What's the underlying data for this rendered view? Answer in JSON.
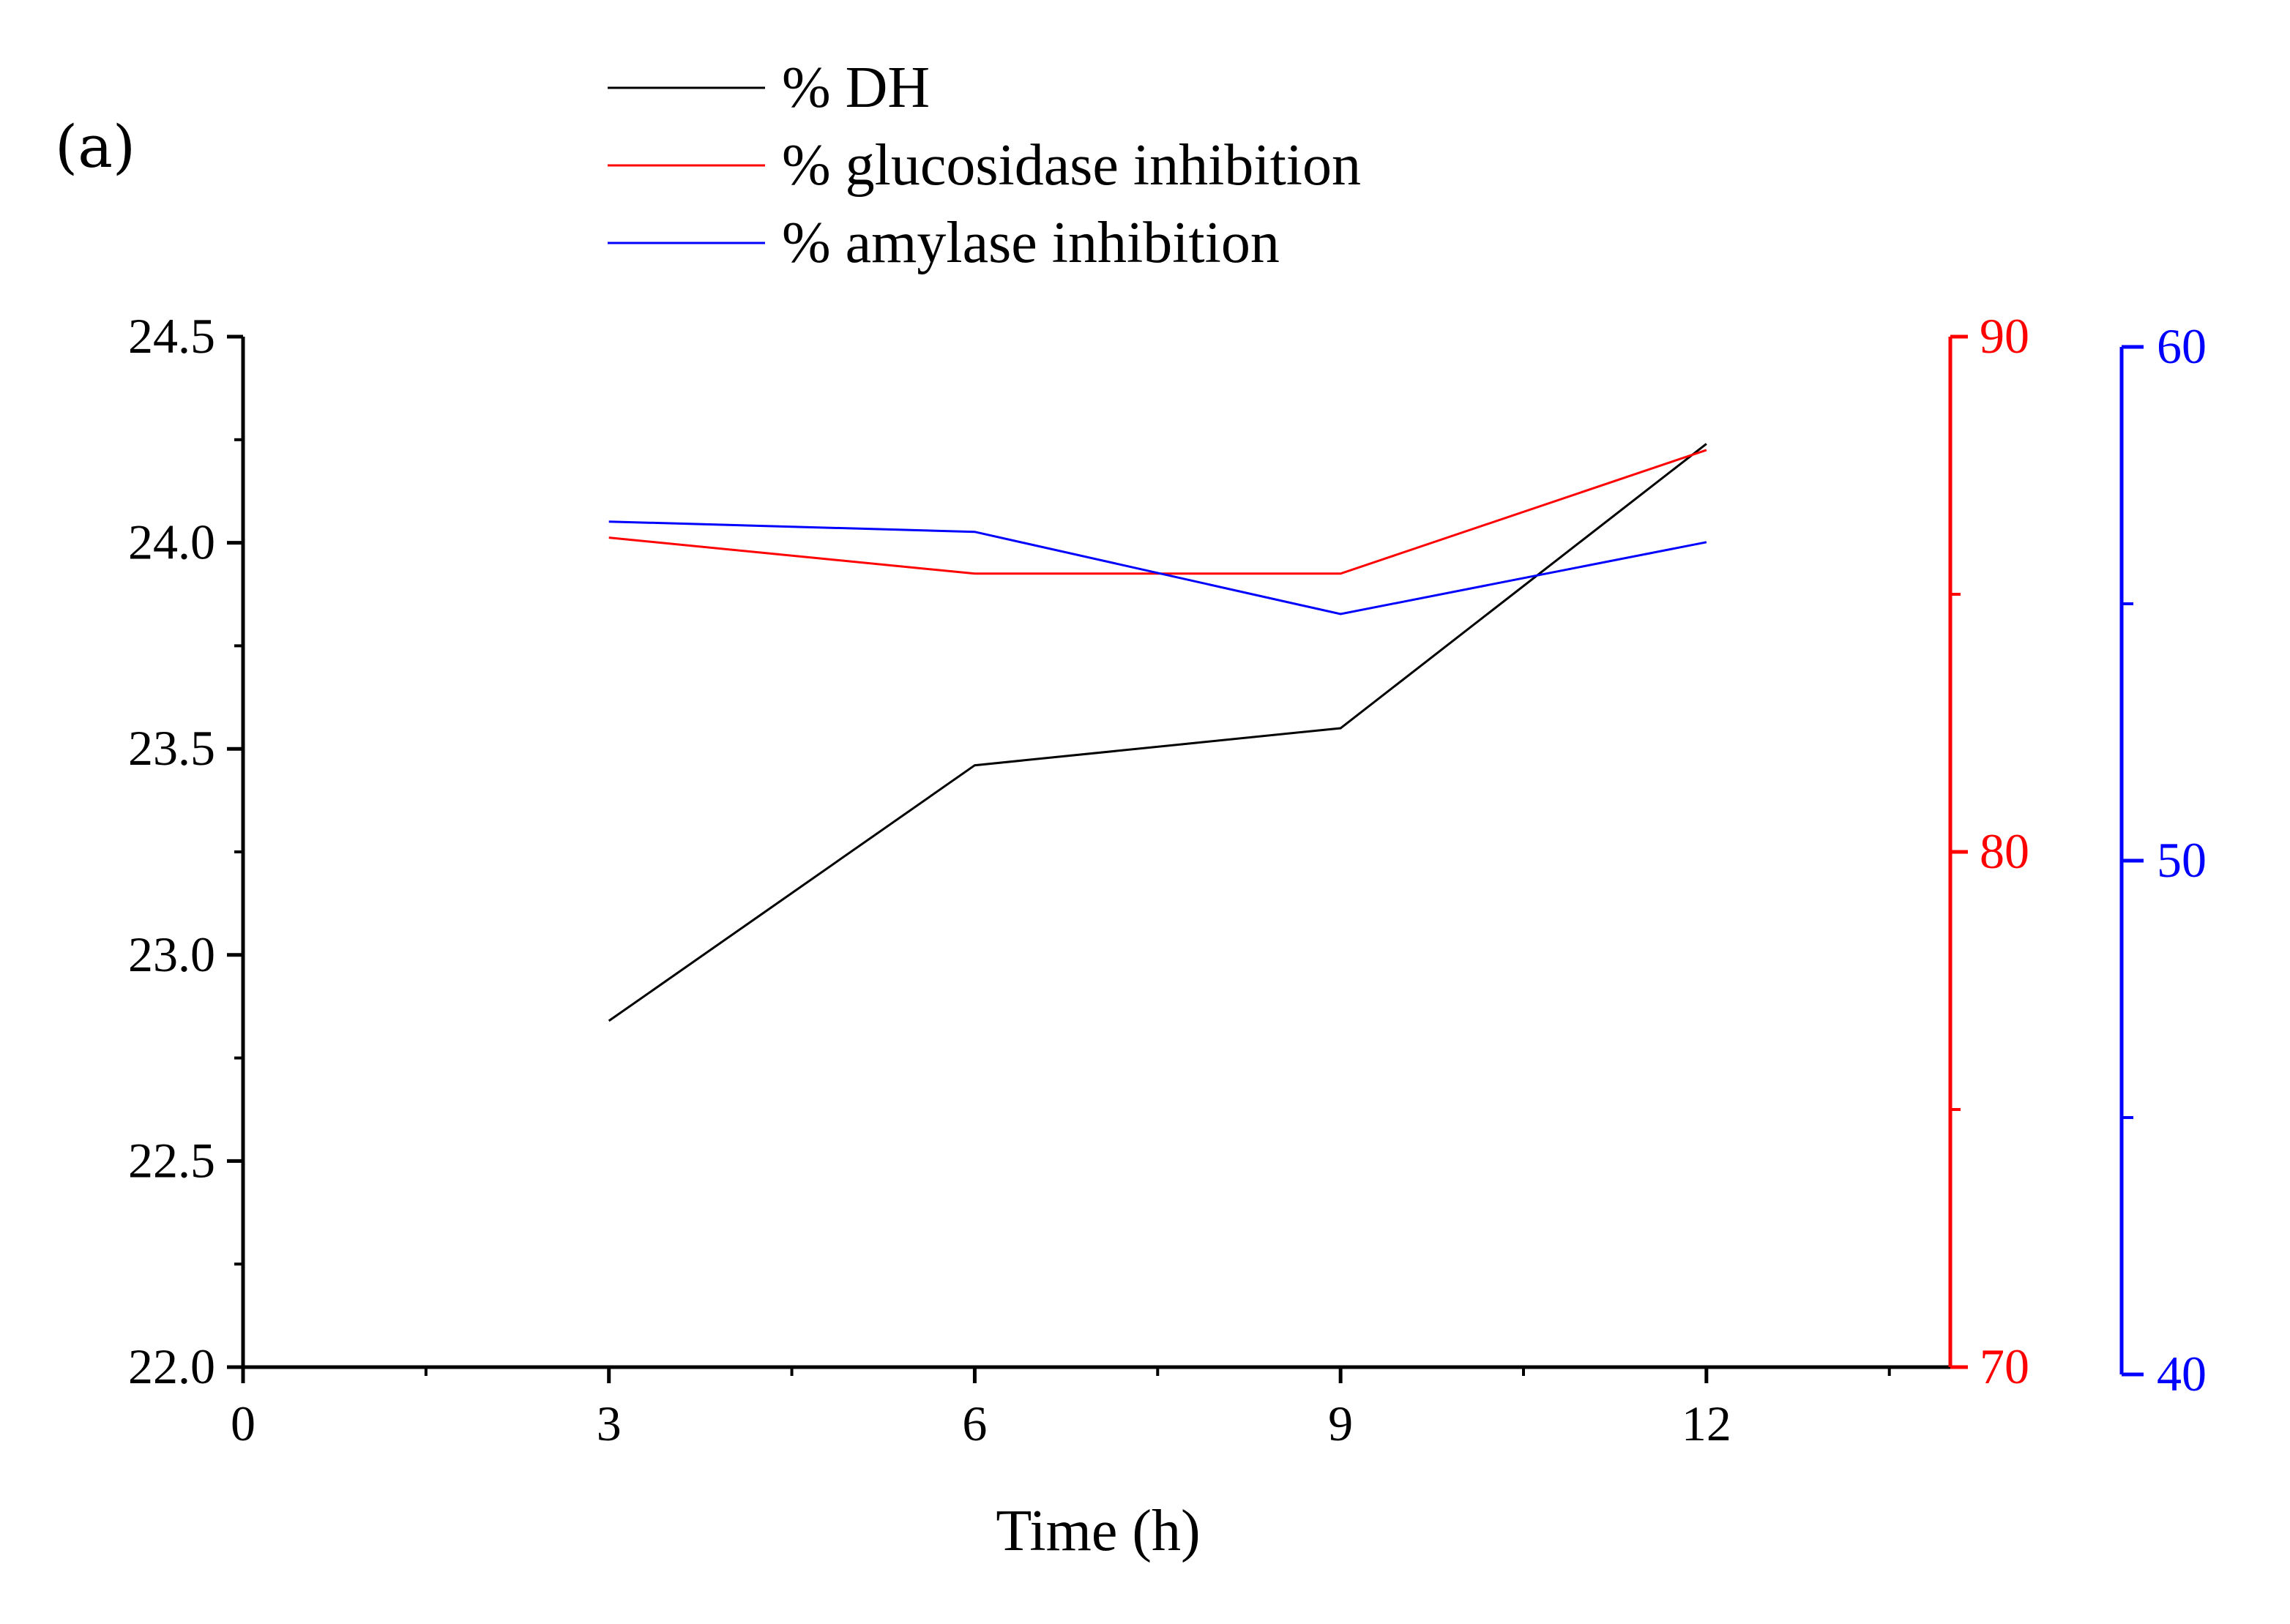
{
  "panel_label": "(a)",
  "colors": {
    "dh": "#000000",
    "glucosidase": "#ff0000",
    "amylase": "#0000ff",
    "axis": "#000000"
  },
  "chart_data": {
    "type": "line",
    "title": "",
    "xlabel": "Time (h)",
    "ylabel": "",
    "x": [
      3,
      6,
      9,
      12
    ],
    "xlim": [
      0,
      14
    ],
    "xticks": [
      0,
      3,
      6,
      9,
      12
    ],
    "x_tick_labels": [
      "0",
      "3",
      "6",
      "9",
      "12"
    ],
    "legend_position": "top-left, above plot",
    "axes": {
      "left": {
        "ylim": [
          22.0,
          24.5
        ],
        "ticks": [
          22.0,
          22.5,
          23.0,
          23.5,
          24.0,
          24.5
        ],
        "tick_labels": [
          "22.0",
          "22.5",
          "23.0",
          "23.5",
          "24.0",
          "24.5"
        ],
        "color": "#000000"
      },
      "right_red": {
        "ylim": [
          70,
          90
        ],
        "ticks": [
          70,
          80,
          90
        ],
        "tick_labels": [
          "70",
          "80",
          "90"
        ],
        "color": "#ff0000"
      },
      "right_blue": {
        "ylim": [
          40,
          60
        ],
        "ticks": [
          40,
          50,
          60
        ],
        "tick_labels": [
          "40",
          "50",
          "60"
        ],
        "color": "#0000ff"
      }
    },
    "series": [
      {
        "name": "% DH",
        "axis": "left",
        "color": "#000000",
        "values": [
          22.84,
          23.46,
          23.55,
          24.24
        ]
      },
      {
        "name": "% glucosidase inhibition",
        "axis": "right_red",
        "color": "#ff0000",
        "values": [
          86.1,
          85.4,
          85.4,
          87.8
        ]
      },
      {
        "name": "% amylase inhibition",
        "axis": "right_blue",
        "color": "#0000ff",
        "values": [
          56.6,
          56.4,
          54.8,
          56.2
        ]
      }
    ]
  }
}
